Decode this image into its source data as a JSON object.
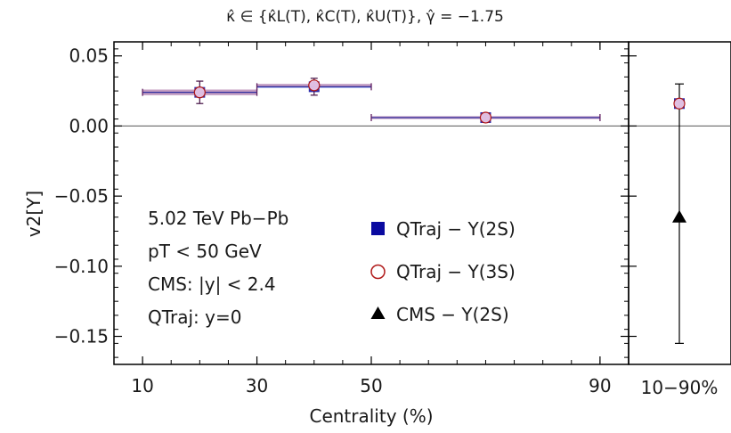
{
  "chart_data": {
    "type": "scatter",
    "title": "κ̂ ∈ {κ̂L(T), κ̂C(T), κ̂U(T)}, γ̂ = −1.75",
    "xlabel": "Centrality (%)",
    "ylabel": "v2[Υ]",
    "xlim": [
      5,
      95
    ],
    "ylim": [
      -0.17,
      0.06
    ],
    "x_ticks": [
      10,
      30,
      50,
      90
    ],
    "y_ticks": [
      0.05,
      0.0,
      -0.05,
      -0.1,
      -0.15
    ],
    "y_tick_labels": [
      "0.05",
      "0.00",
      "−0.05",
      "−0.10",
      "−0.15"
    ],
    "x_tick_labels": [
      "10",
      "30",
      "50",
      "90"
    ],
    "right_panel_label": "10−90%",
    "annotations": [
      "5.02 TeV Pb−Pb",
      "pT < 50 GeV",
      "CMS: |y| < 2.4",
      "QTraj: y=0"
    ],
    "legend_position": "center-right",
    "series": [
      {
        "name": "QTraj − Υ(2S)",
        "marker": "square",
        "color": "#0a0aa0",
        "points": [
          {
            "x": 20,
            "xmin": 10,
            "xmax": 30,
            "y": 0.024,
            "ylo": 0.022,
            "yhi": 0.026
          },
          {
            "x": 40,
            "xmin": 30,
            "xmax": 50,
            "y": 0.028,
            "ylo": 0.027,
            "yhi": 0.03
          },
          {
            "x": 70,
            "xmin": 50,
            "xmax": 90,
            "y": 0.006,
            "ylo": 0.005,
            "yhi": 0.007
          }
        ],
        "integrated": {
          "y": 0.016
        }
      },
      {
        "name": "QTraj − Υ(3S)",
        "marker": "circle-open",
        "color": "#b01818",
        "points": [
          {
            "x": 20,
            "y": 0.024,
            "ylo": 0.022,
            "yhi": 0.026
          },
          {
            "x": 40,
            "y": 0.029,
            "ylo": 0.028,
            "yhi": 0.03
          },
          {
            "x": 70,
            "y": 0.006,
            "ylo": 0.005,
            "yhi": 0.007
          }
        ],
        "integrated": {
          "y": 0.016
        }
      },
      {
        "name": "CMS − Υ(2S)",
        "marker": "triangle",
        "color": "#000000",
        "integrated": {
          "y": -0.065,
          "ylo": -0.155,
          "yhi": 0.03
        }
      }
    ],
    "data_error_bars": [
      {
        "x": 20,
        "ylo": 0.016,
        "yhi": 0.032
      },
      {
        "x": 40,
        "ylo": 0.022,
        "yhi": 0.034
      },
      {
        "x": 70,
        "ylo": 0.004,
        "yhi": 0.008
      }
    ]
  }
}
